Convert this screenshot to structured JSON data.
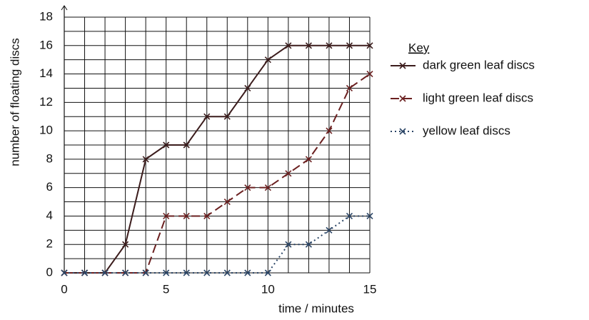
{
  "chart_data": {
    "type": "line",
    "xlabel": "time / minutes",
    "ylabel": "number of floating discs",
    "x": [
      0,
      1,
      2,
      3,
      4,
      5,
      6,
      7,
      8,
      9,
      10,
      11,
      12,
      13,
      14,
      15
    ],
    "series": [
      {
        "name": "dark green leaf discs",
        "color": "#3b1c1c",
        "dash": "solid",
        "values": [
          0,
          0,
          0,
          2,
          8,
          9,
          9,
          11,
          11,
          13,
          15,
          16,
          16,
          16,
          16,
          16
        ]
      },
      {
        "name": "light green leaf discs",
        "color": "#6b2020",
        "dash": "dashed",
        "values": [
          0,
          0,
          0,
          0,
          0,
          4,
          4,
          4,
          5,
          6,
          6,
          7,
          8,
          10,
          13,
          14
        ]
      },
      {
        "name": "yellow leaf discs",
        "color": "#2b4566",
        "dash": "dotted",
        "values": [
          0,
          0,
          0,
          0,
          0,
          0,
          0,
          0,
          0,
          0,
          0,
          2,
          2,
          3,
          4,
          4
        ]
      }
    ],
    "legend_title": "Key",
    "xlim": [
      0,
      15
    ],
    "ylim": [
      0,
      18
    ],
    "xticks": [
      0,
      5,
      10,
      15
    ],
    "yticks": [
      0,
      2,
      4,
      6,
      8,
      10,
      12,
      14,
      16,
      18
    ],
    "xgrid": [
      0,
      1,
      2,
      3,
      4,
      5,
      6,
      7,
      8,
      9,
      10,
      11,
      12,
      13,
      14,
      15
    ],
    "ygrid": [
      0,
      1,
      2,
      3,
      4,
      5,
      6,
      7,
      8,
      9,
      10,
      11,
      12,
      13,
      14,
      15,
      16,
      17,
      18
    ],
    "grid": true
  }
}
